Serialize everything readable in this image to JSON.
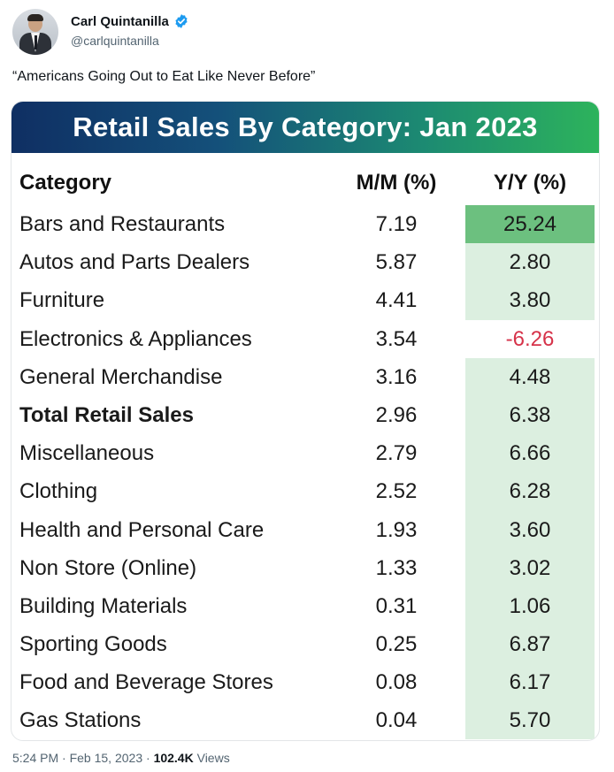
{
  "author": {
    "display_name": "Carl Quintanilla",
    "handle": "@carlquintanilla",
    "avatar_icon": "avatar-photo",
    "verified_icon": "verified-badge-icon",
    "verified_color": "#1d9bf0"
  },
  "tweet_text": "“Americans Going Out to Eat Like Never Before”",
  "image": {
    "title": "Retail Sales By Category: Jan 2023",
    "columns": [
      "Category",
      "M/M (%)",
      "Y/Y (%)"
    ],
    "rows": [
      {
        "category": "Bars and Restaurants",
        "mm": "7.19",
        "yy": "25.24"
      },
      {
        "category": "Autos and Parts Dealers",
        "mm": "5.87",
        "yy": "2.80"
      },
      {
        "category": "Furniture",
        "mm": "4.41",
        "yy": "3.80"
      },
      {
        "category": "Electronics & Appliances",
        "mm": "3.54",
        "yy": "-6.26"
      },
      {
        "category": "General Merchandise",
        "mm": "3.16",
        "yy": "4.48"
      },
      {
        "category": "Total Retail Sales",
        "mm": "2.96",
        "yy": "6.38"
      },
      {
        "category": "Miscellaneous",
        "mm": "2.79",
        "yy": "6.66"
      },
      {
        "category": "Clothing",
        "mm": "2.52",
        "yy": "6.28"
      },
      {
        "category": "Health and Personal Care",
        "mm": "1.93",
        "yy": "3.60"
      },
      {
        "category": "Non Store (Online)",
        "mm": "1.33",
        "yy": "3.02"
      },
      {
        "category": "Building Materials",
        "mm": "0.31",
        "yy": "1.06"
      },
      {
        "category": "Sporting Goods",
        "mm": "0.25",
        "yy": "6.87"
      },
      {
        "category": "Food and Beverage Stores",
        "mm": "0.08",
        "yy": "6.17"
      },
      {
        "category": "Gas Stations",
        "mm": "0.04",
        "yy": "5.70"
      }
    ],
    "colors": {
      "banner_start": "#0f2f63",
      "banner_end": "#2db35c",
      "yy_fill": "#dcefe0",
      "yy_top_fill": "#6cc07f",
      "negative_text": "#d6334a"
    }
  },
  "meta": {
    "time": "5:24 PM",
    "date": "Feb 15, 2023",
    "views_count": "102.4K",
    "views_label": "Views"
  }
}
